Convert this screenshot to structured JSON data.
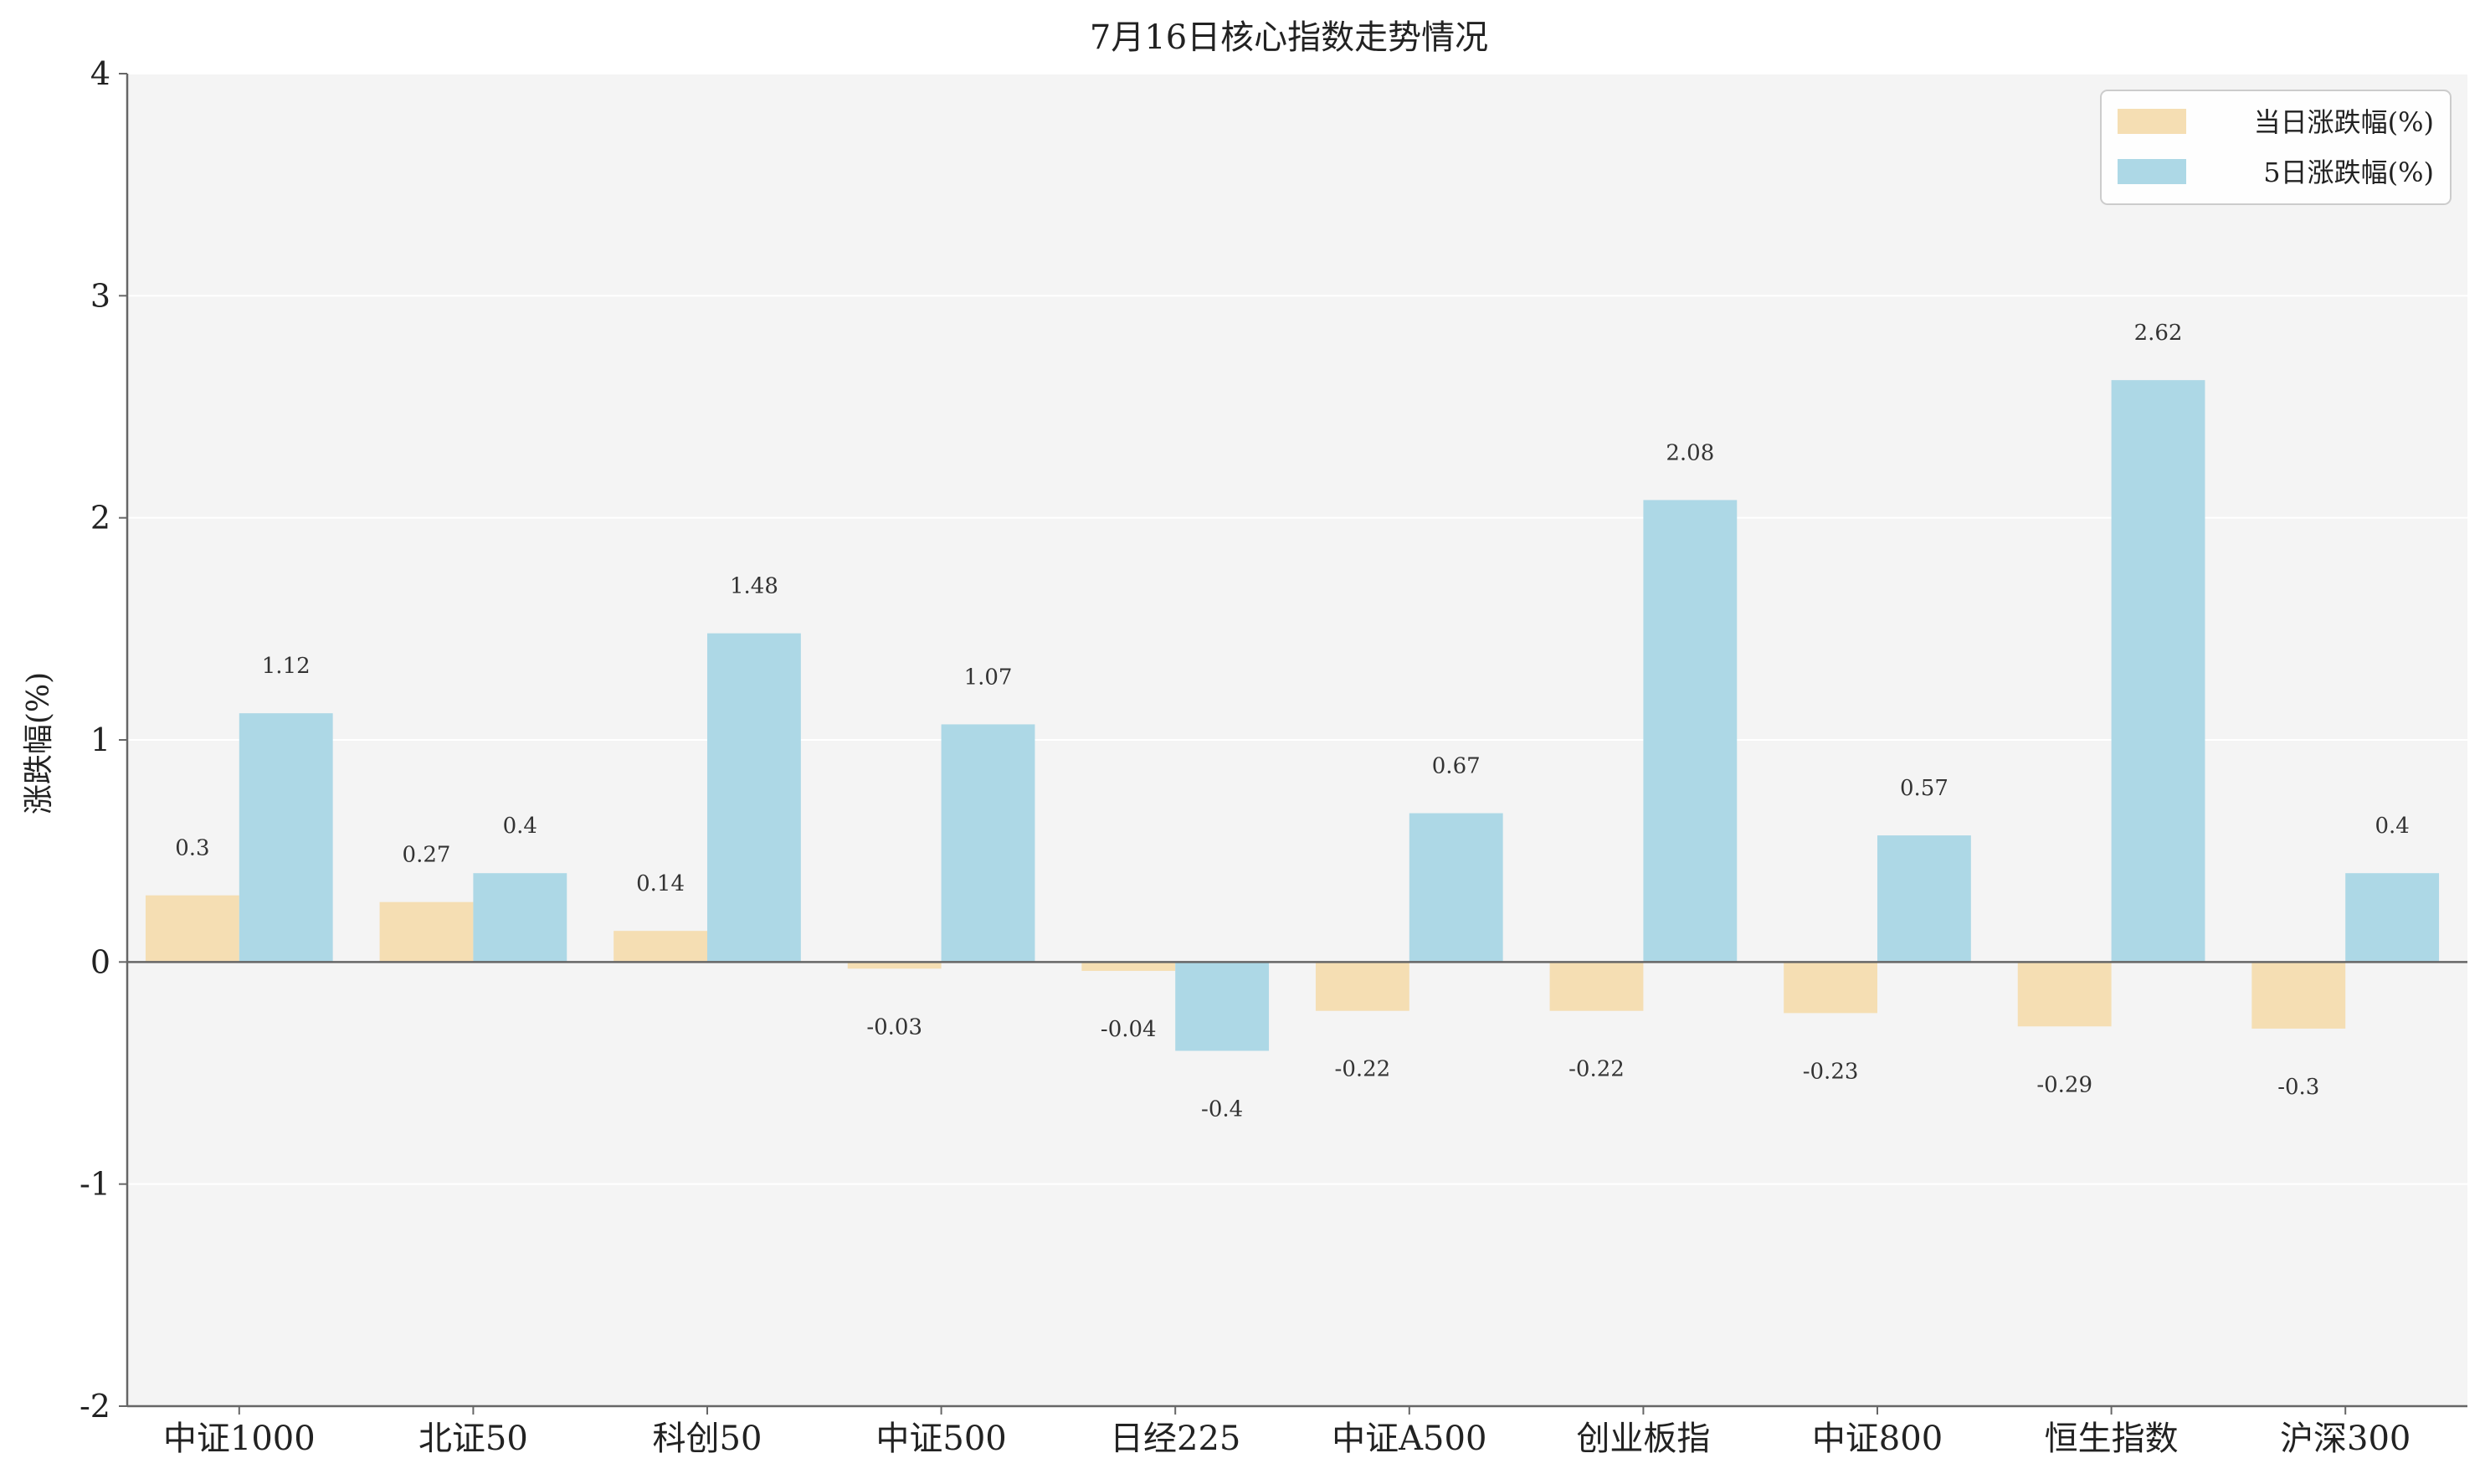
{
  "chart_data": {
    "type": "bar",
    "title": "7月16日核心指数走势情况",
    "xlabel": "",
    "ylabel": "涨跌幅(%)",
    "ylim": [
      -2,
      4
    ],
    "yticks": [
      -2,
      -1,
      0,
      1,
      2,
      3,
      4
    ],
    "grid": true,
    "legend_position": "top-right",
    "categories": [
      "中证1000",
      "北证50",
      "科创50",
      "中证500",
      "日经225",
      "中证A500",
      "创业板指",
      "中证800",
      "恒生指数",
      "沪深300"
    ],
    "series": [
      {
        "name": "当日涨跌幅(%)",
        "color": "#F5DEB3",
        "values": [
          0.3,
          0.27,
          0.14,
          -0.03,
          -0.04,
          -0.22,
          -0.22,
          -0.23,
          -0.29,
          -0.3
        ]
      },
      {
        "name": "5日涨跌幅(%)",
        "color": "#ADD8E6",
        "values": [
          1.12,
          0.4,
          1.48,
          1.07,
          -0.4,
          0.67,
          2.08,
          0.57,
          2.62,
          0.4
        ]
      }
    ],
    "colors": {
      "plot_background": "#F4F4F4",
      "grid": "#FFFFFF",
      "axis": "#666666"
    }
  }
}
